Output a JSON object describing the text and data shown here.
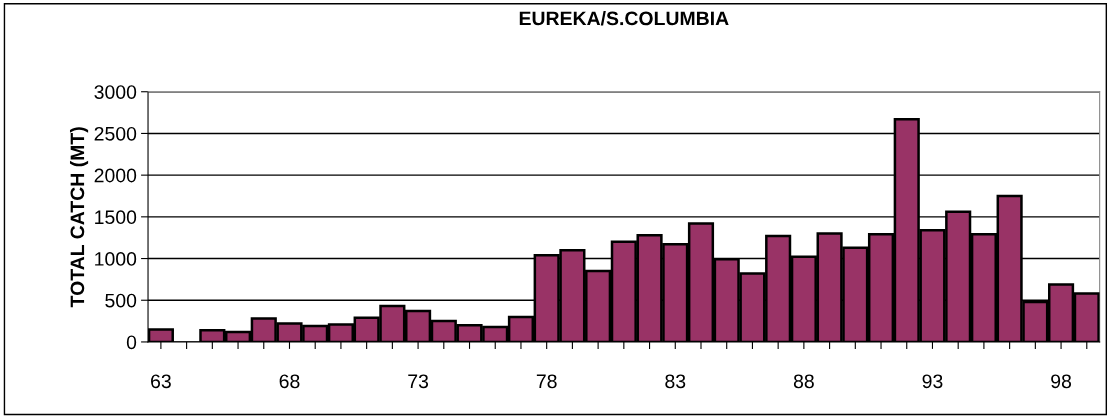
{
  "chart_data": {
    "type": "bar",
    "title": "EUREKA/S.COLUMBIA",
    "ylabel": "TOTAL CATCH (MT)",
    "categories": [
      "63",
      null,
      null,
      null,
      null,
      "68",
      null,
      null,
      null,
      null,
      "73",
      null,
      null,
      null,
      null,
      "78",
      null,
      null,
      null,
      null,
      "83",
      null,
      null,
      null,
      null,
      "88",
      null,
      null,
      null,
      null,
      "93",
      null,
      null,
      null,
      null,
      "98",
      null
    ],
    "values": [
      150,
      null,
      140,
      120,
      280,
      220,
      190,
      210,
      290,
      430,
      370,
      250,
      200,
      180,
      300,
      1040,
      1100,
      850,
      1200,
      1280,
      1170,
      1420,
      990,
      820,
      1270,
      1020,
      1300,
      1130,
      1290,
      2670,
      1340,
      1560,
      1290,
      1750,
      480,
      690,
      580
    ],
    "color": "#993366",
    "ylim": [
      0,
      3000
    ],
    "yticks": [
      0,
      500,
      1000,
      1500,
      2000,
      2500,
      3000
    ],
    "grid": "y",
    "legend": false
  }
}
